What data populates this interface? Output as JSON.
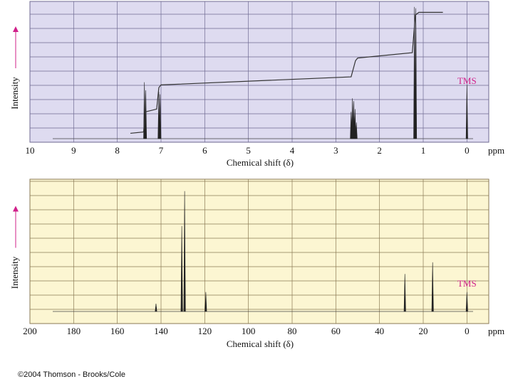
{
  "chart_data": [
    {
      "type": "spectrum",
      "xlabel": "Chemical shift (δ)",
      "x_unit": "ppm",
      "ylabel": "Intensity",
      "annotation": "TMS",
      "background": "#dedbf0",
      "grid_color": "#6f6a92",
      "color": "#222222",
      "xlim": [
        10,
        -0.5
      ],
      "xticks": [
        10,
        9,
        8,
        7,
        6,
        5,
        4,
        3,
        2,
        1,
        0
      ],
      "ylim": [
        0,
        100
      ],
      "x": [
        7.38,
        7.35,
        7.05,
        7.02,
        2.65,
        2.62,
        2.59,
        2.56,
        2.53,
        1.2,
        1.17,
        0
      ],
      "values": [
        42,
        36,
        35,
        33,
        20,
        30,
        28,
        22,
        12,
        98,
        97,
        40
      ],
      "integral_x": [
        7.7,
        7.4,
        7.35,
        7.1,
        7.05,
        7.0,
        2.65,
        2.55,
        2.5,
        1.25,
        1.18,
        1.1,
        0.55
      ],
      "integral_values": [
        4,
        5,
        20,
        22,
        38,
        40,
        46,
        58,
        60,
        64,
        92,
        94,
        94
      ]
    },
    {
      "type": "spectrum",
      "xlabel": "Chemical shift (δ)",
      "x_unit": "ppm",
      "ylabel": "Intensity",
      "annotation": "TMS",
      "background": "#fcf6d2",
      "grid_color": "#8a7a55",
      "color": "#222222",
      "xlim": [
        200,
        -10
      ],
      "xticks": [
        200,
        180,
        160,
        140,
        120,
        100,
        80,
        60,
        40,
        20,
        0
      ],
      "ylim": [
        0,
        100
      ],
      "x": [
        142.3,
        130.5,
        129.2,
        119.5,
        28.4,
        15.7,
        0
      ],
      "values": [
        6,
        66,
        93,
        15,
        29,
        38,
        15
      ]
    }
  ],
  "credit": "©2004 Thomson - Brooks/Cole"
}
